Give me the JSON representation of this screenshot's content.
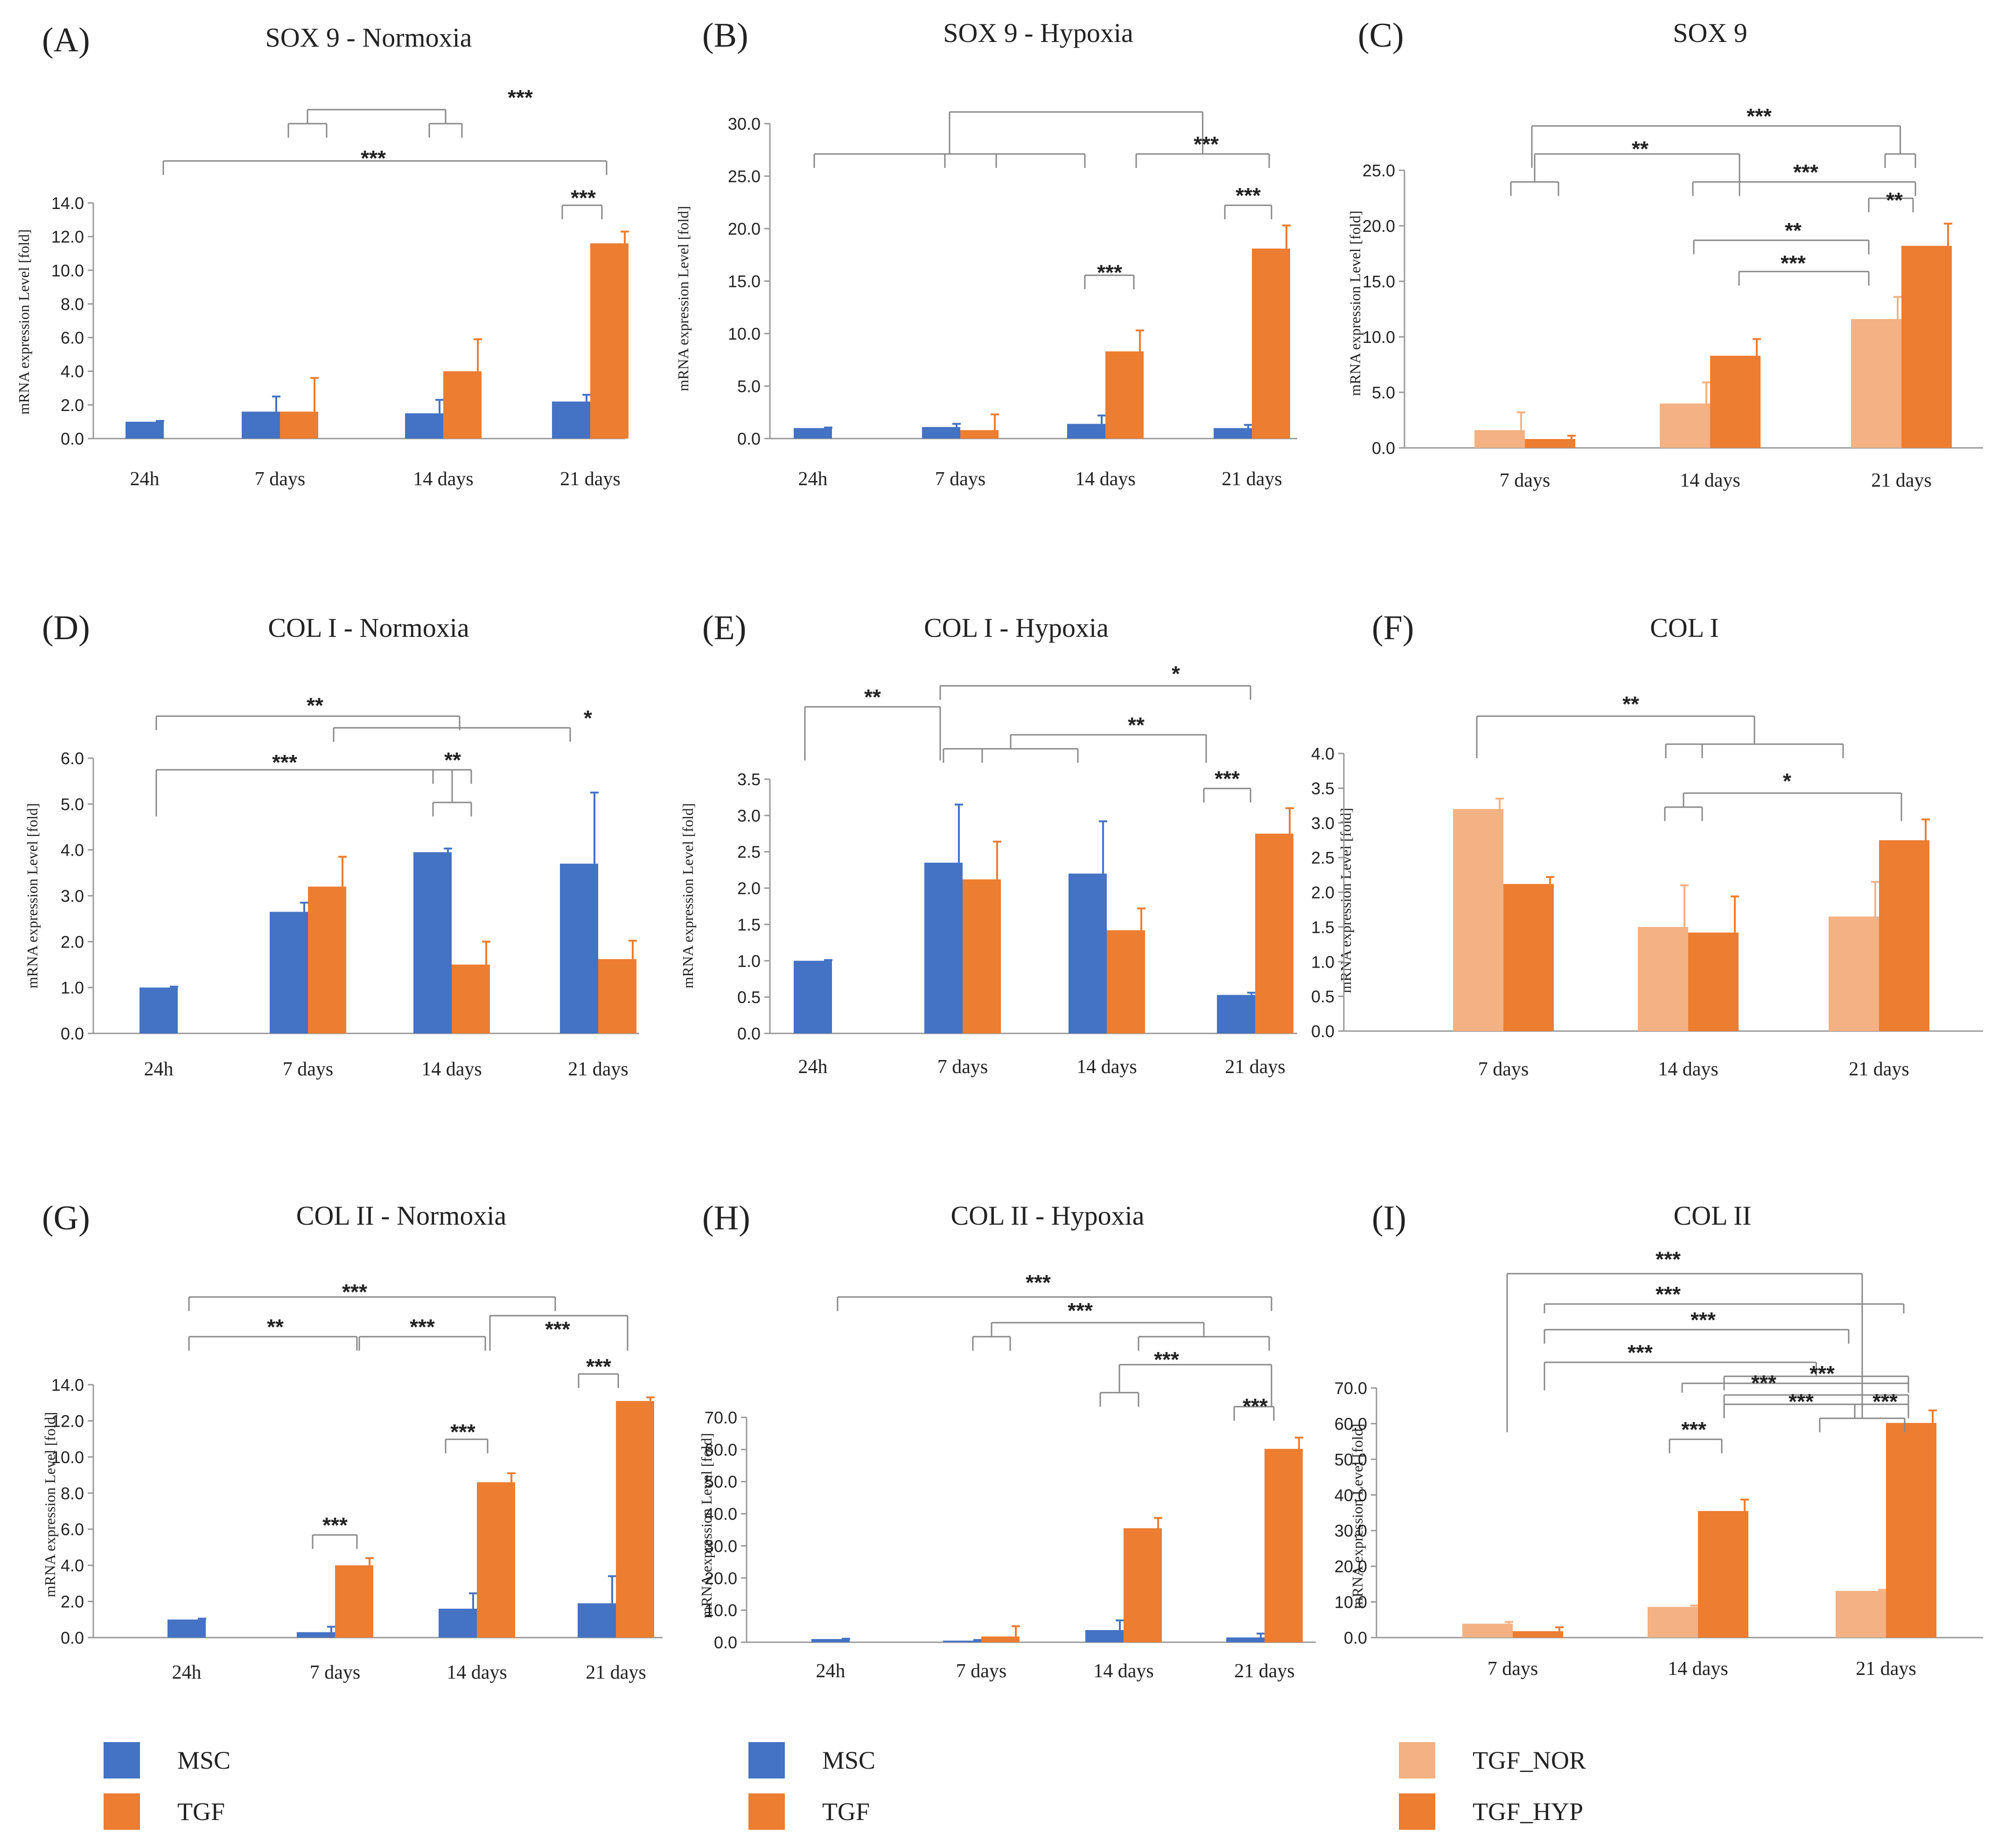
{
  "colors": {
    "MSC": "#4472c4",
    "TGF": "#ed7d31",
    "TGF_NOR": "#f4b183",
    "TGF_HYP": "#ed7d31",
    "axis": "#999999",
    "bracket": "#888888"
  },
  "ylabel": "mRNA expression Level [fold]",
  "chart_data": [
    {
      "id": "A",
      "panel_label": "(A)",
      "title": "SOX 9 - Normoxia",
      "type": "bar",
      "ymax": 14,
      "yticks": [
        "0.0",
        "2.0",
        "4.0",
        "6.0",
        "8.0",
        "10.0",
        "12.0",
        "14.0"
      ],
      "categories": [
        "24h",
        "7 days",
        "14 days",
        "21 days"
      ],
      "series": [
        {
          "name": "MSC",
          "color_key": "MSC",
          "values": [
            1.0,
            1.6,
            1.5,
            2.2
          ],
          "errors": [
            0.05,
            0.9,
            0.8,
            0.4
          ]
        },
        {
          "name": "TGF",
          "color_key": "TGF",
          "values": [
            null,
            1.6,
            4.0,
            11.6
          ],
          "errors": [
            null,
            2.0,
            1.9,
            0.7
          ]
        }
      ],
      "brackets": [
        {
          "star": "***",
          "text": "***"
        },
        {
          "star": "***",
          "text": "***"
        },
        {
          "star": "***",
          "text": "***"
        }
      ]
    },
    {
      "id": "B",
      "panel_label": "(B)",
      "title": "SOX 9 - Hypoxia",
      "type": "bar",
      "ymax": 30,
      "yticks": [
        "0.0",
        "5.0",
        "10.0",
        "15.0",
        "20.0",
        "25.0",
        "30.0"
      ],
      "categories": [
        "24h",
        "7 days",
        "14 days",
        "21 days"
      ],
      "series": [
        {
          "name": "MSC",
          "color_key": "MSC",
          "values": [
            1.0,
            1.1,
            1.4,
            1.0
          ],
          "errors": [
            0.05,
            0.3,
            0.8,
            0.3
          ]
        },
        {
          "name": "TGF",
          "color_key": "TGF",
          "values": [
            null,
            0.8,
            8.3,
            18.1
          ],
          "errors": [
            null,
            1.5,
            2.0,
            2.2
          ]
        }
      ],
      "brackets": [
        {
          "star": "***",
          "text": "***"
        },
        {
          "star": "***",
          "text": "***"
        },
        {
          "star": "***",
          "text": "***"
        }
      ]
    },
    {
      "id": "C",
      "panel_label": "(C)",
      "title": "SOX 9",
      "type": "bar",
      "ymax": 25,
      "yticks": [
        "0.0",
        "5.0",
        "10.0",
        "15.0",
        "20.0",
        "25.0"
      ],
      "categories": [
        "7 days",
        "14 days",
        "21 days"
      ],
      "series": [
        {
          "name": "TGF_NOR",
          "color_key": "TGF_NOR",
          "values": [
            1.6,
            4.0,
            11.6
          ],
          "errors": [
            1.6,
            1.9,
            2.0
          ]
        },
        {
          "name": "TGF_HYP",
          "color_key": "TGF_HYP",
          "values": [
            0.8,
            8.3,
            18.2
          ],
          "errors": [
            0.3,
            1.5,
            2.0
          ]
        }
      ],
      "brackets": [
        {
          "star": "***",
          "text": "***"
        },
        {
          "star": "**",
          "text": "**"
        },
        {
          "star": "***",
          "text": "***"
        },
        {
          "star": "**",
          "text": "**"
        },
        {
          "star": "**",
          "text": "**"
        },
        {
          "star": "***",
          "text": "***"
        }
      ]
    },
    {
      "id": "D",
      "panel_label": "(D)",
      "title": "COL I - Normoxia",
      "type": "bar",
      "ymax": 6,
      "yticks": [
        "0.0",
        "1.0",
        "2.0",
        "3.0",
        "4.0",
        "5.0",
        "6.0"
      ],
      "categories": [
        "24h",
        "7 days",
        "14 days",
        "21 days"
      ],
      "series": [
        {
          "name": "MSC",
          "color_key": "MSC",
          "values": [
            1.0,
            2.65,
            3.95,
            3.7
          ],
          "errors": [
            0.02,
            0.2,
            0.08,
            1.55
          ]
        },
        {
          "name": "TGF",
          "color_key": "TGF",
          "values": [
            null,
            3.2,
            1.5,
            1.62
          ],
          "errors": [
            null,
            0.65,
            0.5,
            0.4
          ]
        }
      ],
      "brackets": [
        {
          "star": "**",
          "text": "**"
        },
        {
          "star": "*",
          "text": "*"
        },
        {
          "star": "***",
          "text": "***"
        },
        {
          "star": "**",
          "text": "**"
        }
      ]
    },
    {
      "id": "E",
      "panel_label": "(E)",
      "title": "COL I - Hypoxia",
      "type": "bar",
      "ymax": 3.5,
      "yticks": [
        "0.0",
        "0.5",
        "1.0",
        "1.5",
        "2.0",
        "2.5",
        "3.0",
        "3.5"
      ],
      "categories": [
        "24h",
        "7 days",
        "14 days",
        "21 days"
      ],
      "series": [
        {
          "name": "MSC",
          "color_key": "MSC",
          "values": [
            1.0,
            2.35,
            2.2,
            0.53
          ],
          "errors": [
            0.01,
            0.8,
            0.72,
            0.03
          ]
        },
        {
          "name": "TGF",
          "color_key": "TGF",
          "values": [
            null,
            2.12,
            1.42,
            2.75
          ],
          "errors": [
            null,
            0.52,
            0.3,
            0.35
          ]
        }
      ],
      "brackets": [
        {
          "star": "**",
          "text": "**"
        },
        {
          "star": "*",
          "text": "*"
        },
        {
          "star": "**",
          "text": "**"
        },
        {
          "star": "***",
          "text": "***"
        }
      ]
    },
    {
      "id": "F",
      "panel_label": "(F)",
      "title": "COL I",
      "type": "bar",
      "ymax": 4,
      "yticks": [
        "0.0",
        "0.5",
        "1.0",
        "1.5",
        "2.0",
        "2.5",
        "3.0",
        "3.5",
        "4.0"
      ],
      "categories": [
        "7 days",
        "14 days",
        "21 days"
      ],
      "series": [
        {
          "name": "TGF_NOR",
          "color_key": "TGF_NOR",
          "values": [
            3.2,
            1.5,
            1.65
          ],
          "errors": [
            0.15,
            0.6,
            0.5
          ]
        },
        {
          "name": "TGF_HYP",
          "color_key": "TGF_HYP",
          "values": [
            2.12,
            1.42,
            2.75
          ],
          "errors": [
            0.1,
            0.52,
            0.3
          ]
        }
      ],
      "brackets": [
        {
          "star": "**",
          "text": "**"
        },
        {
          "star": "*",
          "text": "*"
        }
      ]
    },
    {
      "id": "G",
      "panel_label": "(G)",
      "title": "COL II - Normoxia",
      "type": "bar",
      "ymax": 14,
      "yticks": [
        "0.0",
        "2.0",
        "4.0",
        "6.0",
        "8.0",
        "10.0",
        "12.0",
        "14.0"
      ],
      "categories": [
        "24h",
        "7 days",
        "14 days",
        "21 days"
      ],
      "series": [
        {
          "name": "MSC",
          "color_key": "MSC",
          "values": [
            1.0,
            0.3,
            1.6,
            1.9
          ],
          "errors": [
            0.05,
            0.3,
            0.85,
            1.5
          ]
        },
        {
          "name": "TGF",
          "color_key": "TGF",
          "values": [
            null,
            4.0,
            8.6,
            13.1
          ],
          "errors": [
            null,
            0.4,
            0.5,
            0.2
          ]
        }
      ],
      "brackets": [
        {
          "star": "***",
          "text": "***"
        },
        {
          "star": "**",
          "text": "**"
        },
        {
          "star": "***",
          "text": "***"
        },
        {
          "star": "***",
          "text": "***"
        },
        {
          "star": "***",
          "text": "***"
        },
        {
          "star": "***",
          "text": "***"
        },
        {
          "star": "***",
          "text": "***"
        }
      ]
    },
    {
      "id": "H",
      "panel_label": "(H)",
      "title": "COL II - Hypoxia",
      "type": "bar",
      "ymax": 70,
      "yticks": [
        "0.0",
        "10.0",
        "20.0",
        "30.0",
        "40.0",
        "50.0",
        "60.0",
        "70.0"
      ],
      "categories": [
        "24h",
        "7 days",
        "14 days",
        "21 days"
      ],
      "series": [
        {
          "name": "MSC",
          "color_key": "MSC",
          "values": [
            1.0,
            0.5,
            3.8,
            1.5
          ],
          "errors": [
            0.1,
            0.2,
            3.0,
            1.2
          ]
        },
        {
          "name": "TGF",
          "color_key": "TGF",
          "values": [
            null,
            1.8,
            35.5,
            60.2
          ],
          "errors": [
            null,
            3.2,
            3.2,
            3.5
          ]
        }
      ],
      "brackets": [
        {
          "star": "***",
          "text": "***"
        },
        {
          "star": "***",
          "text": "***"
        },
        {
          "star": "***",
          "text": "***"
        },
        {
          "star": "***",
          "text": "***"
        }
      ]
    },
    {
      "id": "I",
      "panel_label": "(I)",
      "title": "COL II",
      "type": "bar",
      "ymax": 70,
      "yticks": [
        "0.0",
        "10.0",
        "20.0",
        "30.0",
        "40.0",
        "50.0",
        "60.0",
        "70.0"
      ],
      "categories": [
        "7 days",
        "14 days",
        "21 days"
      ],
      "series": [
        {
          "name": "TGF_NOR",
          "color_key": "TGF_NOR",
          "values": [
            3.9,
            8.6,
            13.1
          ],
          "errors": [
            0.5,
            0.4,
            0.3
          ]
        },
        {
          "name": "TGF_HYP",
          "color_key": "TGF_HYP",
          "values": [
            1.8,
            35.5,
            60.2
          ],
          "errors": [
            1.1,
            3.2,
            3.5
          ]
        }
      ],
      "brackets": [
        {
          "star": "***",
          "text": "***"
        },
        {
          "star": "***",
          "text": "***"
        },
        {
          "star": "***",
          "text": "***"
        },
        {
          "star": "***",
          "text": "***"
        },
        {
          "star": "***",
          "text": "***"
        },
        {
          "star": "***",
          "text": "***"
        },
        {
          "star": "***",
          "text": "***"
        },
        {
          "star": "***",
          "text": "***"
        },
        {
          "star": "***",
          "text": "***"
        }
      ]
    }
  ],
  "legends": [
    {
      "items": [
        {
          "label": "MSC",
          "color_key": "MSC"
        },
        {
          "label": "TGF",
          "color_key": "TGF"
        }
      ]
    },
    {
      "items": [
        {
          "label": "MSC",
          "color_key": "MSC"
        },
        {
          "label": "TGF",
          "color_key": "TGF"
        }
      ]
    },
    {
      "items": [
        {
          "label": "TGF_NOR",
          "color_key": "TGF_NOR"
        },
        {
          "label": "TGF_HYP",
          "color_key": "TGF_HYP"
        }
      ]
    }
  ]
}
